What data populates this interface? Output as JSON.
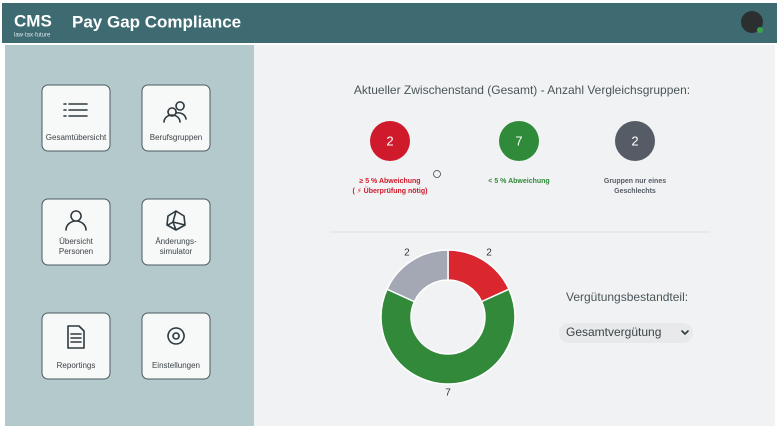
{
  "header": {
    "logo": "CMS",
    "logo_tagline": "law·tax·future",
    "title": "Pay Gap Compliance"
  },
  "nav": [
    {
      "label": [
        "Gesamtübersicht"
      ]
    },
    {
      "label": [
        "Berufsgruppen"
      ]
    },
    {
      "label": [
        "Übersicht",
        "Personen"
      ]
    },
    {
      "label": [
        "Änderungs-",
        "simulator"
      ]
    },
    {
      "label": [
        "Reportings"
      ]
    },
    {
      "label": [
        "Einstellungen"
      ]
    }
  ],
  "summary": {
    "heading": "Aktueller Zwischenstand (Gesamt) - Anzahl Vergleichsgruppen:",
    "items": [
      {
        "count": 2,
        "label": [
          "≥ 5 % Abweichung",
          "( ⚡ Überprüfung nötig)"
        ],
        "color": "#cf1a2b"
      },
      {
        "count": 7,
        "label": [
          "< 5 % Abweichung"
        ],
        "color": "#2f8a3a"
      },
      {
        "count": 2,
        "label": [
          "Gruppen nur eines",
          "Geschlechts"
        ],
        "color": "#555c66"
      }
    ]
  },
  "chart_data": {
    "type": "donut",
    "values": [
      2,
      7,
      2
    ],
    "colors": [
      "#d9262f",
      "#32893a",
      "#a3a8b4"
    ]
  },
  "filter": {
    "label": "Vergütungsbestandteil:",
    "selected": "Gesamtvergütung"
  }
}
